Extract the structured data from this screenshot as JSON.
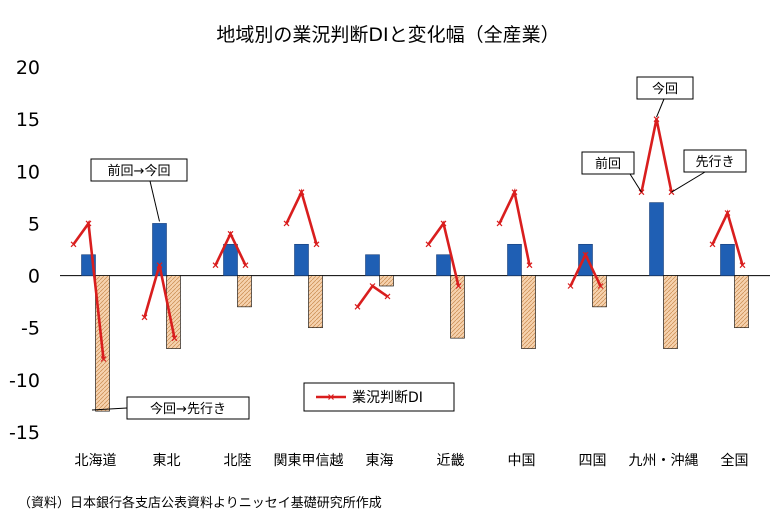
{
  "chart_data": {
    "type": "bar",
    "title": "地域別の業況判断DIと変化幅（全産業）",
    "source": "（資料）日本銀行各支店公表資料よりニッセイ基礎研究所作成",
    "ylim": [
      -15,
      20
    ],
    "yticks": [
      "20",
      "15",
      "10",
      "5",
      "0",
      "-5",
      "-10",
      "-15"
    ],
    "ytick_values": [
      20,
      15,
      10,
      5,
      0,
      -5,
      -10,
      -15
    ],
    "categories": [
      "北海道",
      "東北",
      "北陸",
      "関東甲信越",
      "東海",
      "近畿",
      "中国",
      "四国",
      "九州・沖縄",
      "全国"
    ],
    "series": [
      {
        "values": [
          2,
          5,
          3,
          3,
          2,
          2,
          3,
          3,
          7,
          3
        ],
        "color": "#1f5fb4"
      },
      {
        "values": [
          -13,
          -7,
          -3,
          -5,
          -1,
          -6,
          -7,
          -3,
          -7,
          -5
        ],
        "color": "#f6d2ae"
      },
      {
        "name": "業況判断DI",
        "type": "line",
        "color": "#d91e1e",
        "segments": [
          [
            3,
            5,
            -8
          ],
          [
            -4,
            1,
            -6
          ],
          [
            1,
            4,
            1
          ],
          [
            5,
            8,
            3
          ],
          [
            -3,
            -1,
            -2
          ],
          [
            3,
            5,
            -1
          ],
          [
            5,
            8,
            1
          ],
          [
            -1,
            2,
            -1
          ],
          [
            8,
            15,
            8
          ],
          [
            3,
            6,
            1
          ]
        ]
      }
    ],
    "annotations": [
      "前回→今回",
      "今回→先行き",
      "前回",
      "今回",
      "先行き"
    ],
    "legend": {
      "label": "業況判断DI",
      "position": "bottom-center"
    },
    "grid": false
  }
}
